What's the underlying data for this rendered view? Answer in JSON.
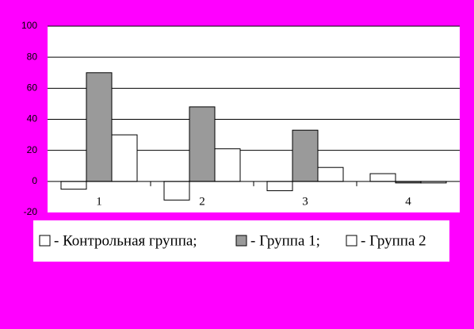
{
  "chart_data": {
    "type": "bar",
    "categories": [
      "1",
      "2",
      "3",
      "4"
    ],
    "series": [
      {
        "name": "- Контрольная группа;",
        "color": "#ffffff",
        "values": [
          -5,
          -12,
          -6,
          5
        ]
      },
      {
        "name": "- Группа 1;",
        "color": "#9a9a9a",
        "values": [
          70,
          48,
          33,
          -1
        ]
      },
      {
        "name": "- Группа 2",
        "color": "#ffffff",
        "values": [
          30,
          21,
          9,
          -1
        ]
      }
    ],
    "ylim": [
      -20,
      100
    ],
    "yticks": [
      -20,
      0,
      20,
      40,
      60,
      80,
      100
    ],
    "grid": true
  }
}
